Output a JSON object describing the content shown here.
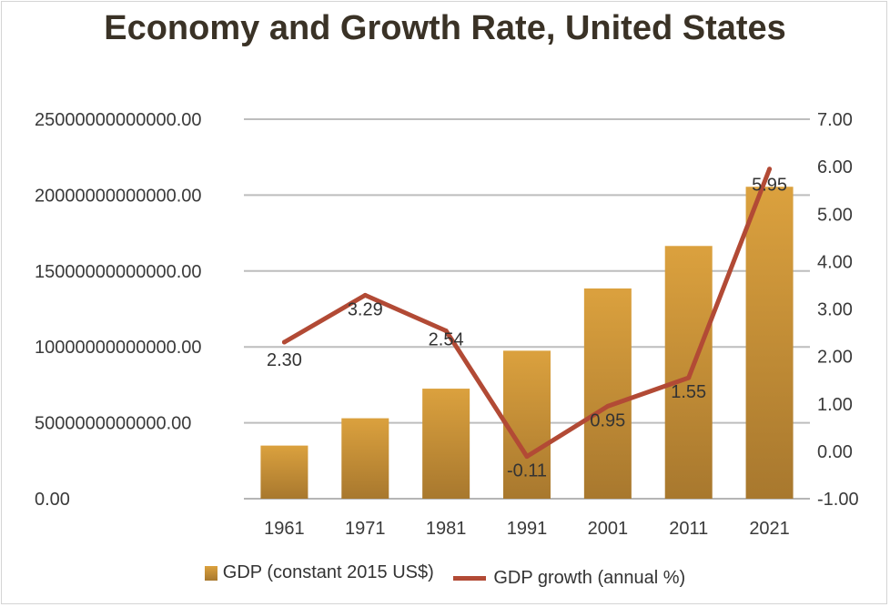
{
  "chart_data": {
    "type": "bar+line",
    "title": "Economy and Growth Rate, United States",
    "categories": [
      "1961",
      "1971",
      "1981",
      "1991",
      "2001",
      "2011",
      "2021"
    ],
    "series": [
      {
        "name": "GDP (constant 2015 US$)",
        "type": "bar",
        "axis": "left",
        "color": "#c8913a",
        "values": [
          3500000000000,
          5300000000000,
          7250000000000,
          9750000000000,
          13850000000000,
          16650000000000,
          20550000000000
        ]
      },
      {
        "name": "GDP growth (annual %)",
        "type": "line",
        "axis": "right",
        "color": "#b24a35",
        "values": [
          2.3,
          3.29,
          2.54,
          -0.11,
          0.95,
          1.55,
          5.95
        ],
        "labels": [
          "2.30",
          "3.29",
          "2.54",
          "-0.11",
          "0.95",
          "1.55",
          "5.95"
        ]
      }
    ],
    "y_left": {
      "min": 0,
      "max": 25000000000000,
      "ticks": [
        0,
        5000000000000,
        10000000000000,
        15000000000000,
        20000000000000,
        25000000000000
      ],
      "tick_labels": [
        "0.00",
        "5000000000000.00",
        "10000000000000.00",
        "15000000000000.00",
        "20000000000000.00",
        "25000000000000.00"
      ]
    },
    "y_right": {
      "min": -1,
      "max": 7,
      "ticks": [
        -1,
        0,
        1,
        2,
        3,
        4,
        5,
        6,
        7
      ],
      "tick_labels": [
        "-1.00",
        "0.00",
        "1.00",
        "2.00",
        "3.00",
        "4.00",
        "5.00",
        "6.00",
        "7.00"
      ]
    },
    "grid": true,
    "legend_position": "bottom"
  }
}
